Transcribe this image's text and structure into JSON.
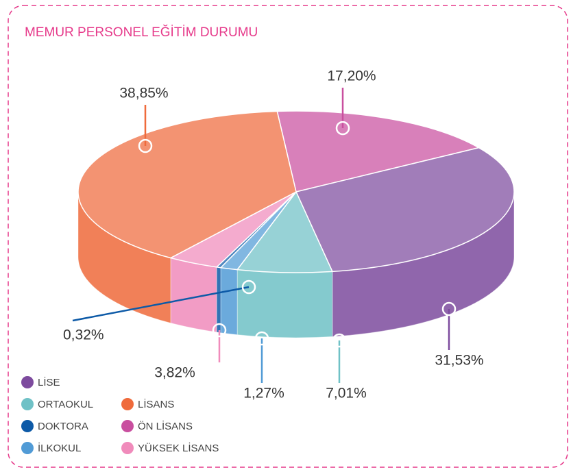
{
  "chart_data": {
    "type": "pie",
    "title": "MEMUR PERSONEL EĞİTİM DURUMU",
    "categories": [
      "ÖN LİSANS",
      "LİSE",
      "ORTAOKUL",
      "İLKOKUL",
      "DOKTORA",
      "YÜKSEK LİSANS",
      "LİSANS"
    ],
    "values": [
      17.2,
      31.53,
      7.01,
      1.27,
      0.32,
      3.82,
      38.85
    ],
    "value_labels": [
      "17,20%",
      "31,53%",
      "7,01%",
      "1,27%",
      "0,32%",
      "3,82%",
      "38,85%"
    ],
    "colors": [
      "#c94f9f",
      "#7d4b9e",
      "#6fc1c6",
      "#519bd6",
      "#0d5aa7",
      "#f08bbb",
      "#ef6a3b"
    ],
    "legend": true
  }
}
